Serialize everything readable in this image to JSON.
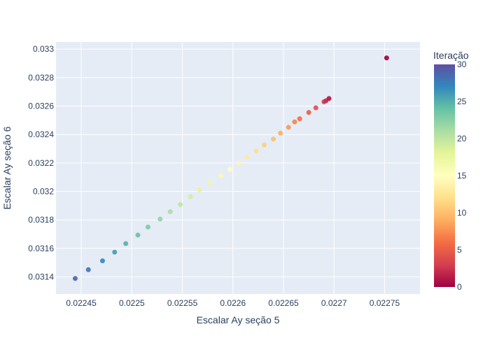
{
  "chart_data": {
    "type": "scatter",
    "title": "",
    "xlabel": "Escalar Ay seção 5",
    "ylabel": "Escalar Ay seção 6",
    "xlim": [
      0.022425,
      0.022785
    ],
    "ylim": [
      0.03128,
      0.03305
    ],
    "xticks": [
      {
        "value": 0.02245,
        "label": "0.02245"
      },
      {
        "value": 0.0225,
        "label": "0.0225"
      },
      {
        "value": 0.02255,
        "label": "0.02255"
      },
      {
        "value": 0.0226,
        "label": "0.0226"
      },
      {
        "value": 0.02265,
        "label": "0.02265"
      },
      {
        "value": 0.0227,
        "label": "0.0227"
      },
      {
        "value": 0.02275,
        "label": "0.02275"
      }
    ],
    "yticks": [
      {
        "value": 0.0314,
        "label": "0.0314"
      },
      {
        "value": 0.0316,
        "label": "0.0316"
      },
      {
        "value": 0.0318,
        "label": "0.0318"
      },
      {
        "value": 0.032,
        "label": "0.032"
      },
      {
        "value": 0.0322,
        "label": "0.0322"
      },
      {
        "value": 0.0324,
        "label": "0.0324"
      },
      {
        "value": 0.0326,
        "label": "0.0326"
      },
      {
        "value": 0.0328,
        "label": "0.0328"
      },
      {
        "value": 0.033,
        "label": "0.033"
      }
    ],
    "grid": true,
    "colorbar": {
      "title": "Iteração",
      "range": [
        0,
        30
      ],
      "ticks": [
        0,
        5,
        10,
        15,
        20,
        25,
        30
      ],
      "colorscale": [
        [
          0.0,
          "#9e0142"
        ],
        [
          0.1,
          "#d53e4f"
        ],
        [
          0.2,
          "#f46d43"
        ],
        [
          0.3,
          "#fdae61"
        ],
        [
          0.4,
          "#fee08b"
        ],
        [
          0.5,
          "#ffffbf"
        ],
        [
          0.6,
          "#e6f598"
        ],
        [
          0.7,
          "#abdda4"
        ],
        [
          0.8,
          "#66c2a5"
        ],
        [
          0.9,
          "#3288bd"
        ],
        [
          1.0,
          "#5e4fa2"
        ]
      ]
    },
    "points": [
      {
        "iter": 0,
        "x": 0.022752,
        "y": 0.032938
      },
      {
        "iter": 1,
        "x": 0.022695,
        "y": 0.032653
      },
      {
        "iter": 2,
        "x": 0.022692,
        "y": 0.032637
      },
      {
        "iter": 3,
        "x": 0.02269,
        "y": 0.03263
      },
      {
        "iter": 4,
        "x": 0.022682,
        "y": 0.032588
      },
      {
        "iter": 5,
        "x": 0.022675,
        "y": 0.032555
      },
      {
        "iter": 6,
        "x": 0.022666,
        "y": 0.032511
      },
      {
        "iter": 7,
        "x": 0.022661,
        "y": 0.032489
      },
      {
        "iter": 8,
        "x": 0.022655,
        "y": 0.032451
      },
      {
        "iter": 9,
        "x": 0.022647,
        "y": 0.03241
      },
      {
        "iter": 10,
        "x": 0.02264,
        "y": 0.032368
      },
      {
        "iter": 11,
        "x": 0.022631,
        "y": 0.032327
      },
      {
        "iter": 12,
        "x": 0.022623,
        "y": 0.032284
      },
      {
        "iter": 13,
        "x": 0.022614,
        "y": 0.032242
      },
      {
        "iter": 14,
        "x": 0.022606,
        "y": 0.032199
      },
      {
        "iter": 15,
        "x": 0.022597,
        "y": 0.032155
      },
      {
        "iter": 16,
        "x": 0.022588,
        "y": 0.03211
      },
      {
        "iter": 17,
        "x": 0.022577,
        "y": 0.032062
      },
      {
        "iter": 18,
        "x": 0.022567,
        "y": 0.032011
      },
      {
        "iter": 19,
        "x": 0.022558,
        "y": 0.031964
      },
      {
        "iter": 20,
        "x": 0.022548,
        "y": 0.031908
      },
      {
        "iter": 21,
        "x": 0.022538,
        "y": 0.031858
      },
      {
        "iter": 22,
        "x": 0.022528,
        "y": 0.031806
      },
      {
        "iter": 23,
        "x": 0.022516,
        "y": 0.03175
      },
      {
        "iter": 24,
        "x": 0.022506,
        "y": 0.031694
      },
      {
        "iter": 25,
        "x": 0.022494,
        "y": 0.031634
      },
      {
        "iter": 26,
        "x": 0.022483,
        "y": 0.031574
      },
      {
        "iter": 27,
        "x": 0.022471,
        "y": 0.031513
      },
      {
        "iter": 28,
        "x": 0.022457,
        "y": 0.031451
      },
      {
        "iter": 29,
        "x": 0.022444,
        "y": 0.031389
      }
    ]
  }
}
